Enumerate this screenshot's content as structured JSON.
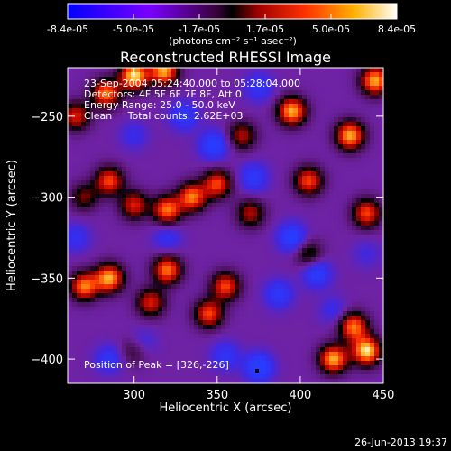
{
  "chart_data": {
    "type": "heatmap",
    "title": "Reconstructed RHESSI Image",
    "xlabel": "Heliocentric X (arcsec)",
    "ylabel": "Heliocentric Y (arcsec)",
    "xlim": [
      260,
      450
    ],
    "ylim": [
      -415,
      -220
    ],
    "x_ticks": [
      300,
      350,
      400,
      450
    ],
    "y_ticks": [
      -250,
      -300,
      -350,
      -400
    ],
    "colorbar": {
      "min": -8.4e-05,
      "max": 8.4e-05,
      "tick_labels": [
        "-8.4e-05",
        "-5.0e-05",
        "-1.7e-05",
        "1.7e-05",
        "5.0e-05",
        "8.4e-05"
      ],
      "label": "(photons cm⁻² s⁻¹ asec⁻²)"
    },
    "annotations": [
      "23-Sep-2004 05:24:40.000 to 05:28:04.000",
      "Detectors: 4F 5F 6F 7F 8F, Att 0",
      "Energy Range: 25.0 - 50.0 keV",
      "Clean     Total counts: 2.62E+03"
    ],
    "peak": {
      "x": 326,
      "y": -226,
      "label": "Position of Peak = [326,-226]"
    },
    "footer_date": "26-Jun-2013 19:37",
    "hot_blobs": [
      {
        "x": 300,
        "y": -225,
        "v": 1.0
      },
      {
        "x": 318,
        "y": -222,
        "v": 0.9
      },
      {
        "x": 283,
        "y": -236,
        "v": 0.8
      },
      {
        "x": 445,
        "y": -228,
        "v": 0.9
      },
      {
        "x": 395,
        "y": -247,
        "v": 0.9
      },
      {
        "x": 430,
        "y": -262,
        "v": 0.9
      },
      {
        "x": 365,
        "y": -262,
        "v": 0.5
      },
      {
        "x": 285,
        "y": -290,
        "v": 0.7
      },
      {
        "x": 405,
        "y": -290,
        "v": 0.7
      },
      {
        "x": 335,
        "y": -300,
        "v": 0.8
      },
      {
        "x": 320,
        "y": -308,
        "v": 0.8
      },
      {
        "x": 350,
        "y": -292,
        "v": 0.7
      },
      {
        "x": 370,
        "y": -310,
        "v": 0.5
      },
      {
        "x": 300,
        "y": -305,
        "v": 0.6
      },
      {
        "x": 265,
        "y": -250,
        "v": 0.6
      },
      {
        "x": 285,
        "y": -350,
        "v": 0.9
      },
      {
        "x": 270,
        "y": -355,
        "v": 0.8
      },
      {
        "x": 320,
        "y": -345,
        "v": 0.8
      },
      {
        "x": 310,
        "y": -365,
        "v": 0.6
      },
      {
        "x": 345,
        "y": -372,
        "v": 0.7
      },
      {
        "x": 355,
        "y": -355,
        "v": 0.7
      },
      {
        "x": 405,
        "y": -335,
        "v": 0.4
      },
      {
        "x": 440,
        "y": -310,
        "v": 0.7
      },
      {
        "x": 420,
        "y": -400,
        "v": 0.9
      },
      {
        "x": 432,
        "y": -380,
        "v": 0.8
      },
      {
        "x": 440,
        "y": -395,
        "v": 1.0
      },
      {
        "x": 300,
        "y": -395,
        "v": 0.3
      },
      {
        "x": 270,
        "y": -300,
        "v": 0.4
      }
    ],
    "cold_blobs": [
      {
        "x": 348,
        "y": -268,
        "v": 0.9
      },
      {
        "x": 372,
        "y": -288,
        "v": 0.7
      },
      {
        "x": 395,
        "y": -325,
        "v": 0.9
      },
      {
        "x": 410,
        "y": -347,
        "v": 0.8
      },
      {
        "x": 387,
        "y": -360,
        "v": 0.7
      },
      {
        "x": 375,
        "y": -405,
        "v": 1.0
      },
      {
        "x": 355,
        "y": -398,
        "v": 0.6
      },
      {
        "x": 285,
        "y": -400,
        "v": 0.6
      },
      {
        "x": 305,
        "y": -390,
        "v": 0.4
      },
      {
        "x": 375,
        "y": -232,
        "v": 0.6
      },
      {
        "x": 330,
        "y": -250,
        "v": 0.7
      },
      {
        "x": 300,
        "y": -262,
        "v": 0.4
      },
      {
        "x": 265,
        "y": -325,
        "v": 0.5
      },
      {
        "x": 320,
        "y": -325,
        "v": 0.5
      },
      {
        "x": 420,
        "y": -370,
        "v": 0.4
      },
      {
        "x": 440,
        "y": -335,
        "v": 0.3
      }
    ]
  }
}
